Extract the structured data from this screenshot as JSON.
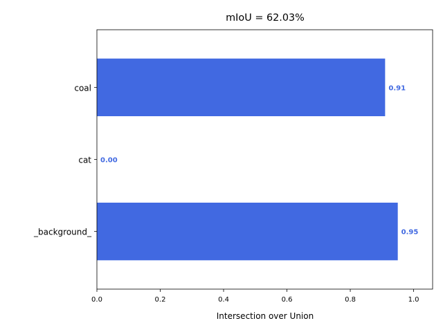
{
  "chart_data": {
    "type": "bar",
    "orientation": "horizontal",
    "title": "mIoU = 62.03%",
    "xlabel": "Intersection over Union",
    "ylabel": "",
    "categories": [
      "coal",
      "cat",
      "_background_"
    ],
    "values": [
      0.91,
      0.0,
      0.95
    ],
    "value_labels": [
      "0.91",
      "0.00",
      "0.95"
    ],
    "xlim": [
      0,
      1.06
    ],
    "xticks": [
      0.0,
      0.2,
      0.4,
      0.6,
      0.8,
      1.0
    ],
    "xtick_labels": [
      "0.0",
      "0.2",
      "0.4",
      "0.6",
      "0.8",
      "1.0"
    ],
    "grid": false,
    "bar_color": "#4169e1",
    "label_color": "#4169e1"
  }
}
